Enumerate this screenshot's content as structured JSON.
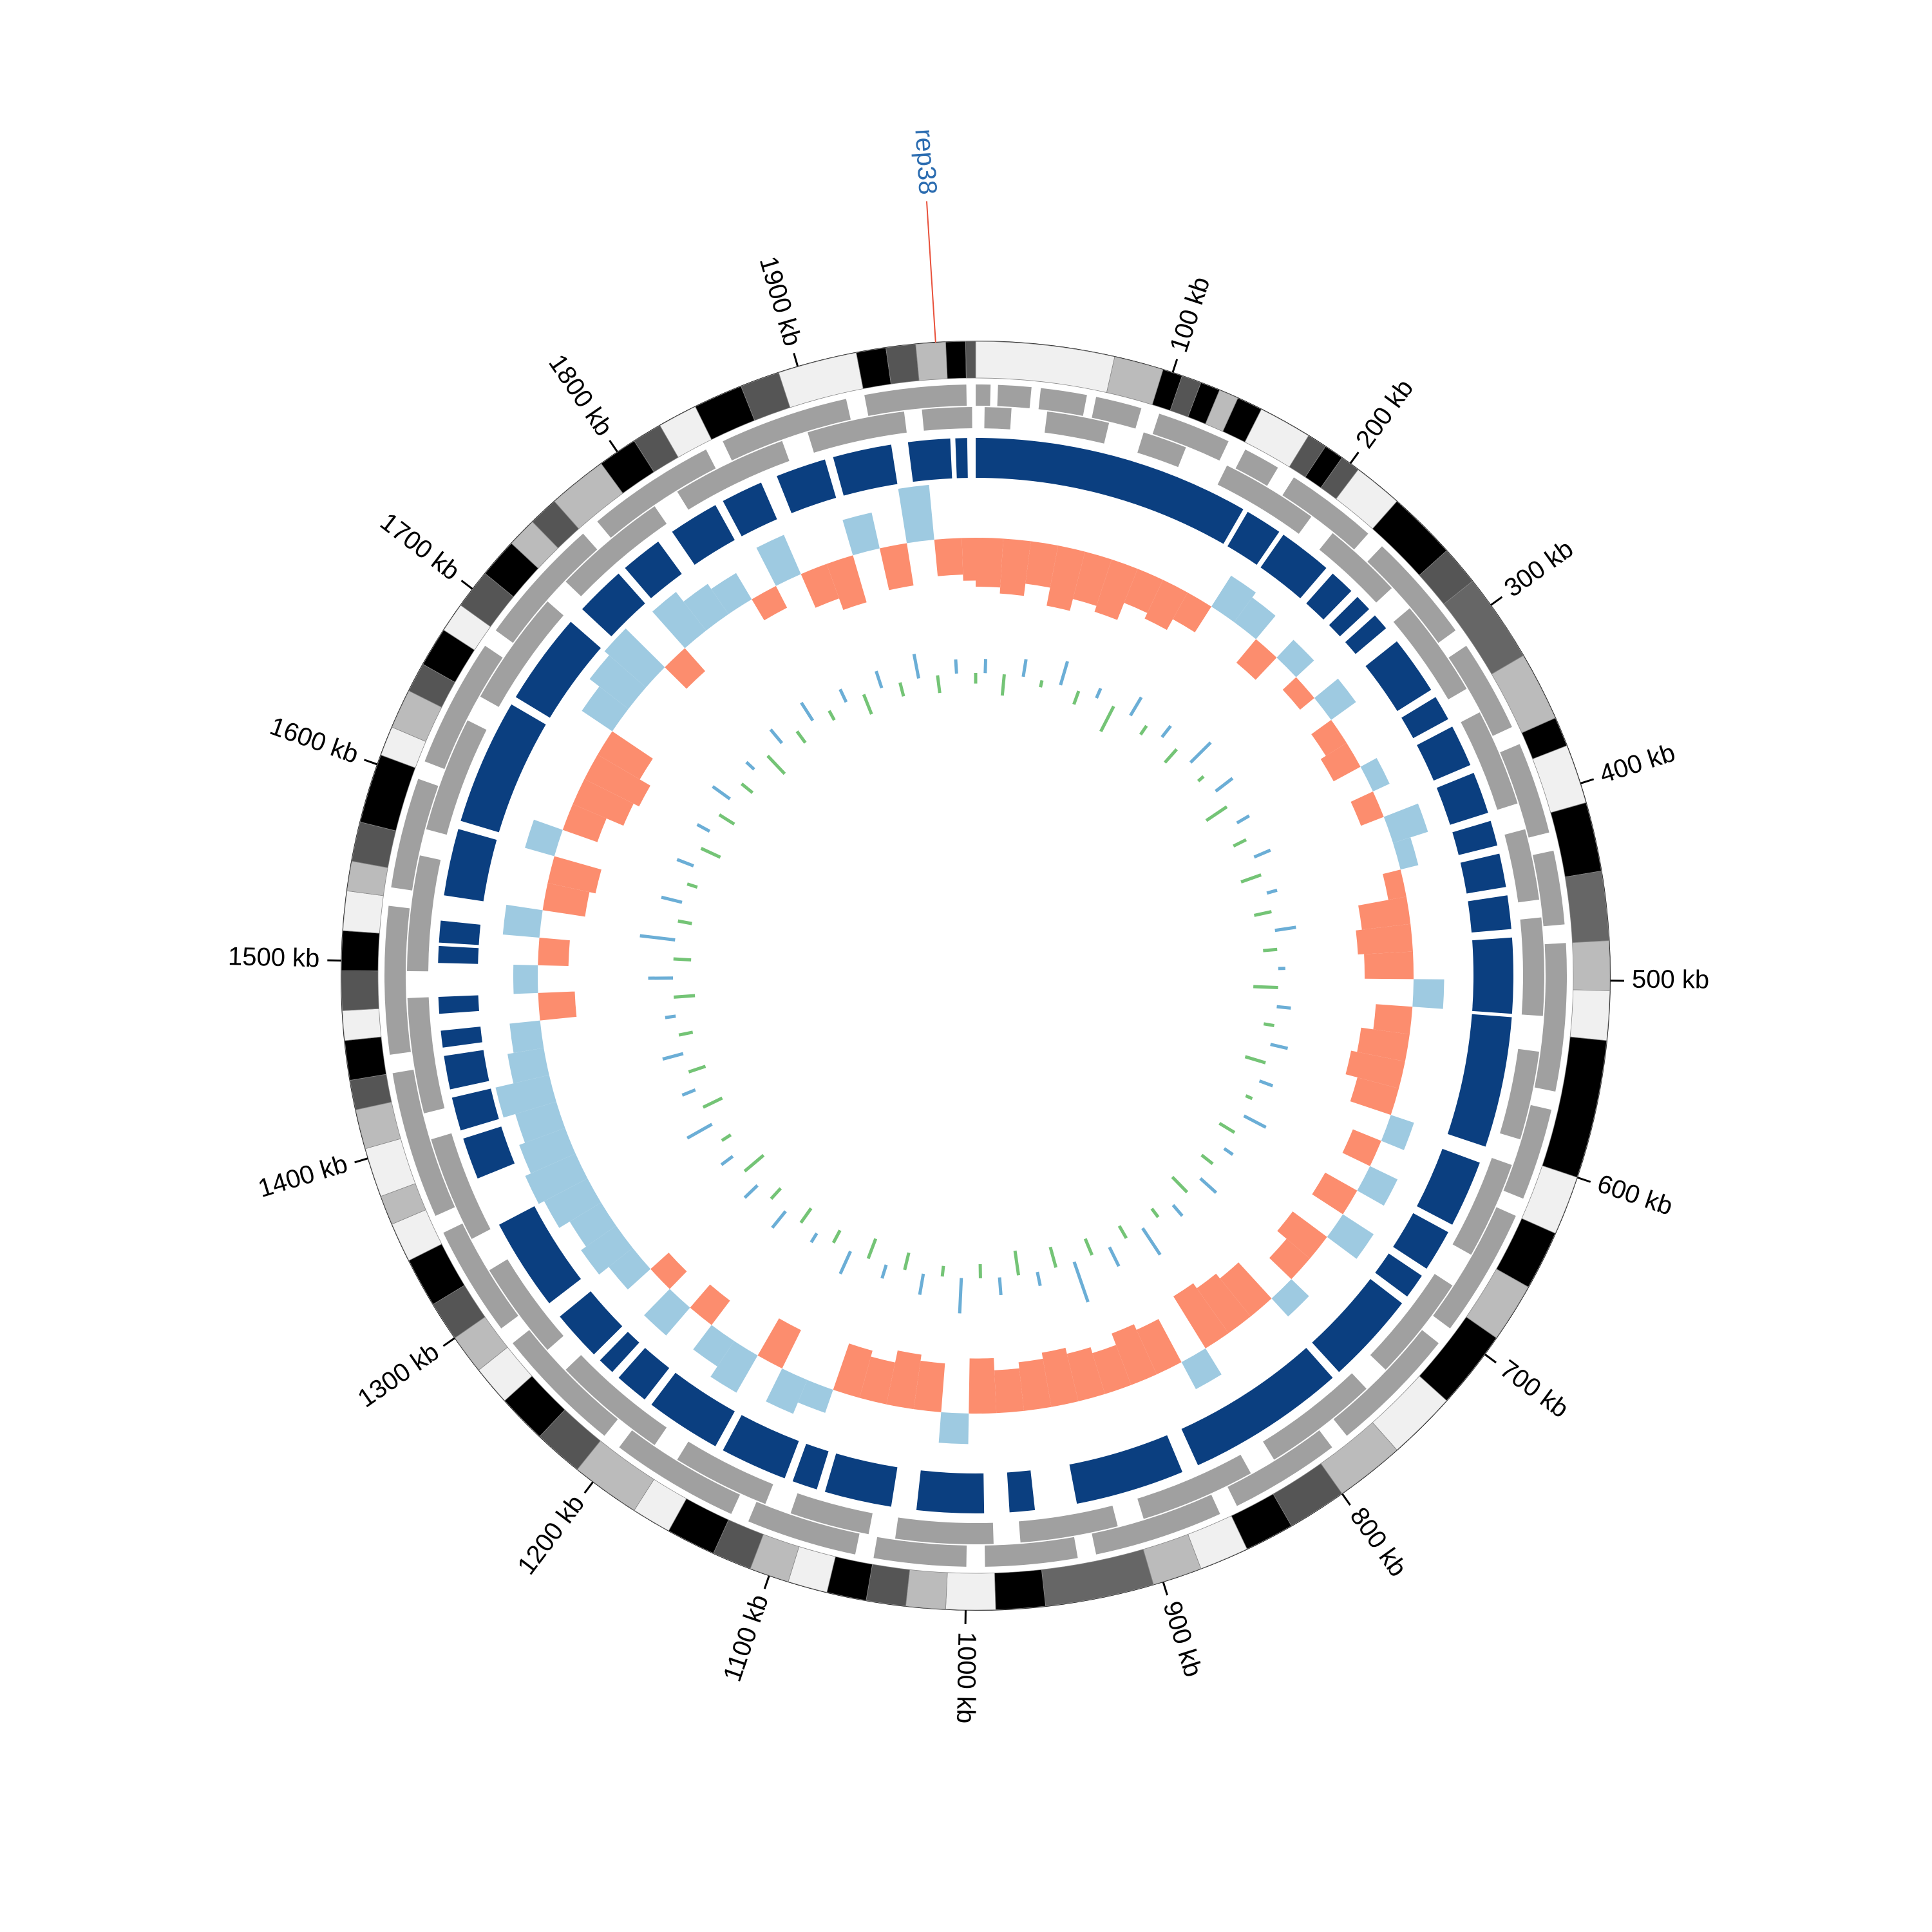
{
  "chart_data": {
    "type": "circos",
    "genome_length": 1990,
    "ticks": [
      {
        "value": 100,
        "label": "100 kb"
      },
      {
        "value": 200,
        "label": "200 kb"
      },
      {
        "value": 300,
        "label": "300 kb"
      },
      {
        "value": 400,
        "label": "400 kb"
      },
      {
        "value": 500,
        "label": "500 kb"
      },
      {
        "value": 600,
        "label": "600 kb"
      },
      {
        "value": 700,
        "label": "700 kb"
      },
      {
        "value": 800,
        "label": "800 kb"
      },
      {
        "value": 900,
        "label": "900 kb"
      },
      {
        "value": 1000,
        "label": "1000 kb"
      },
      {
        "value": 1100,
        "label": "1100 kb"
      },
      {
        "value": 1200,
        "label": "1200 kb"
      },
      {
        "value": 1300,
        "label": "1300 kb"
      },
      {
        "value": 1400,
        "label": "1400 kb"
      },
      {
        "value": 1500,
        "label": "1500 kb"
      },
      {
        "value": 1600,
        "label": "1600 kb"
      },
      {
        "value": 1700,
        "label": "1700 kb"
      },
      {
        "value": 1800,
        "label": "1800 kb"
      },
      {
        "value": 1900,
        "label": "1900 kb"
      }
    ],
    "marker": {
      "label": "rep38",
      "position": 1970,
      "line_color": "#e8503a",
      "label_color": "#2b6cb0"
    },
    "band_edges": [
      0,
      70,
      95,
      105,
      115,
      125,
      135,
      148,
      175,
      185,
      195,
      205,
      230,
      265,
      285,
      330,
      365,
      380,
      410,
      445,
      480,
      505,
      530,
      600,
      630,
      660,
      690,
      730,
      765,
      800,
      830,
      855,
      880,
      905,
      960,
      985,
      1010,
      1030,
      1050,
      1070,
      1090,
      1110,
      1130,
      1155,
      1175,
      1210,
      1235,
      1260,
      1280,
      1300,
      1320,
      1345,
      1365,
      1380,
      1405,
      1425,
      1440,
      1460,
      1475,
      1495,
      1515,
      1535,
      1550,
      1570,
      1605,
      1620,
      1640,
      1655,
      1675,
      1690,
      1710,
      1730,
      1745,
      1760,
      1790,
      1810,
      1825,
      1845,
      1870,
      1890,
      1930,
      1945,
      1960,
      1975,
      1985,
      1990
    ],
    "band_colors": [
      "#f0f0f0",
      "#bbbbbb",
      "#000000",
      "#555555",
      "#000000",
      "#bbbbbb",
      "#000000",
      "#f0f0f0",
      "#555555",
      "#000000",
      "#555555",
      "#f0f0f0",
      "#000000",
      "#555555",
      "#666666",
      "#bbbbbb",
      "#000000",
      "#f0f0f0",
      "#000000",
      "#666666",
      "#bbbbbb",
      "#f0f0f0",
      "#000000",
      "#f0f0f0",
      "#000000",
      "#bbbbbb",
      "#000000",
      "#f0f0f0",
      "#bbbbbb",
      "#555555",
      "#000000",
      "#f0f0f0",
      "#bbbbbb",
      "#666666",
      "#000000",
      "#f0f0f0",
      "#bbbbbb",
      "#555555",
      "#000000",
      "#f0f0f0",
      "#bbbbbb",
      "#555555",
      "#000000",
      "#f0f0f0",
      "#bbbbbb",
      "#555555",
      "#000000",
      "#f0f0f0",
      "#bbbbbb",
      "#555555",
      "#000000",
      "#f0f0f0",
      "#bbbbbb",
      "#f0f0f0",
      "#bbbbbb",
      "#555555",
      "#000000",
      "#f0f0f0",
      "#555555",
      "#000000",
      "#f0f0f0",
      "#bbbbbb",
      "#555555",
      "#000000",
      "#f0f0f0",
      "#bbbbbb",
      "#555555",
      "#000000",
      "#f0f0f0",
      "#555555",
      "#000000",
      "#bbbbbb",
      "#555555",
      "#bbbbbb",
      "#000000",
      "#555555",
      "#f0f0f0",
      "#000000",
      "#555555",
      "#f0f0f0",
      "#000000",
      "#555555",
      "#bbbbbb",
      "#000000",
      "#555555"
    ],
    "gene_color": "#a0a0a0",
    "genes_plus": {
      "starts": [
        0,
        12,
        35,
        65,
        100,
        150,
        180,
        240,
        310,
        370,
        430,
        480,
        570,
        630,
        710,
        790,
        860,
        940,
        1000,
        1060,
        1130,
        1210,
        1290,
        1360,
        1450,
        1540,
        1610,
        1690,
        1770,
        1850,
        1930
      ],
      "ends": [
        8,
        30,
        60,
        90,
        140,
        170,
        230,
        300,
        360,
        420,
        470,
        560,
        620,
        700,
        780,
        850,
        930,
        990,
        1050,
        1120,
        1200,
        1280,
        1350,
        1440,
        1530,
        1600,
        1680,
        1760,
        1840,
        1920,
        1985
      ]
    },
    "genes_minus": {
      "starts": [
        5,
        40,
        95,
        145,
        215,
        275,
        345,
        415,
        465,
        540,
        605,
        680,
        755,
        835,
        915,
        985,
        1055,
        1115,
        1185,
        1265,
        1340,
        1415,
        1495,
        1575,
        1655,
        1735,
        1815,
        1895,
        1960
      ],
      "ends": [
        20,
        75,
        120,
        200,
        260,
        330,
        400,
        455,
        520,
        590,
        660,
        740,
        820,
        900,
        970,
        1040,
        1100,
        1170,
        1250,
        1320,
        1400,
        1480,
        1560,
        1640,
        1720,
        1800,
        1880,
        1950,
        1988
      ]
    },
    "block_color": "#0b3f80",
    "blocks": {
      "starts": [
        0,
        168,
        193,
        230,
        250,
        265,
        285,
        325,
        345,
        375,
        405,
        425,
        450,
        475,
        522,
        610,
        655,
        685,
        705,
        765,
        870,
        960,
        990,
        1045,
        1090,
        1110,
        1155,
        1205,
        1230,
        1245,
        1285,
        1370,
        1400,
        1425,
        1450,
        1470,
        1500,
        1512,
        1540,
        1585,
        1665,
        1730,
        1765,
        1800,
        1835,
        1870,
        1905,
        1950,
        1978
      ],
      "ends": [
        165,
        190,
        225,
        245,
        260,
        275,
        320,
        340,
        370,
        400,
        420,
        445,
        470,
        520,
        600,
        650,
        680,
        700,
        760,
        860,
        935,
        975,
        1030,
        1085,
        1105,
        1150,
        1200,
        1225,
        1240,
        1275,
        1340,
        1395,
        1420,
        1445,
        1460,
        1480,
        1510,
        1525,
        1580,
        1660,
        1720,
        1760,
        1790,
        1830,
        1860,
        1900,
        1940,
        1975,
        1985
      ]
    },
    "x": [
      0,
      20,
      40,
      60,
      80,
      100,
      120,
      140,
      160,
      180,
      200,
      220,
      240,
      260,
      280,
      300,
      320,
      340,
      360,
      380,
      400,
      420,
      440,
      460,
      480,
      500,
      520,
      540,
      560,
      580,
      600,
      620,
      640,
      660,
      680,
      700,
      720,
      740,
      760,
      780,
      800,
      820,
      840,
      860,
      880,
      900,
      920,
      940,
      960,
      980,
      1000,
      1020,
      1040,
      1060,
      1080,
      1100,
      1120,
      1140,
      1160,
      1180,
      1200,
      1220,
      1240,
      1260,
      1280,
      1300,
      1320,
      1340,
      1360,
      1380,
      1400,
      1420,
      1440,
      1460,
      1480,
      1500,
      1520,
      1540,
      1560,
      1580,
      1600,
      1620,
      1640,
      1660,
      1680,
      1700,
      1720,
      1740,
      1760,
      1780,
      1800,
      1820,
      1840,
      1860,
      1880,
      1900,
      1920,
      1940,
      1960,
      1980
    ],
    "gc_content": {
      "positive_color": "#9ecae1",
      "negative_color": "#fc8d6e",
      "ylim": [
        -1,
        1
      ],
      "values": [
        -0.8,
        -0.9,
        -0.7,
        -1,
        -0.8,
        -0.9,
        -0.6,
        -0.7,
        -0.5,
        0.6,
        0.5,
        -0.5,
        0.4,
        -0.3,
        0.5,
        -0.4,
        -0.5,
        0.3,
        -0.4,
        0.6,
        0.3,
        -0.3,
        -0.8,
        -0.9,
        -0.8,
        0.5,
        -0.6,
        -0.8,
        -0.9,
        -0.7,
        0.4,
        -0.5,
        0.5,
        -0.6,
        0.6,
        -0.7,
        -0.5,
        0.4,
        -0.8,
        -0.9,
        -1,
        0.5,
        -0.8,
        -0.9,
        -0.7,
        -0.8,
        -0.9,
        -0.8,
        -0.7,
        -0.9,
        0.5,
        -0.8,
        -0.9,
        -0.7,
        -0.8,
        0.4,
        0.6,
        -0.7,
        0.7,
        0.5,
        -0.5,
        0.6,
        -0.4,
        0.5,
        0.7,
        0.6,
        0.8,
        0.9,
        0.8,
        0.7,
        0.9,
        0.6,
        0.5,
        -0.6,
        0.4,
        -0.5,
        0.6,
        -0.7,
        -0.8,
        0.5,
        -0.6,
        -0.9,
        -1,
        -0.8,
        0.6,
        0.8,
        0.9,
        -0.5,
        0.8,
        0.6,
        0.5,
        -0.4,
        0.7,
        -0.6,
        -0.8,
        0.6,
        -0.7,
        0.9,
        -0.6,
        -0.7
      ]
    },
    "gc_skew": {
      "positive_color": "#6baed6",
      "negative_color": "#74c476",
      "ylim": [
        -1,
        1
      ],
      "values": [
        0.2,
        -0.3,
        0.25,
        -0.1,
        0.35,
        -0.2,
        0.15,
        -0.4,
        0.3,
        -0.15,
        0.2,
        -0.25,
        0.4,
        -0.1,
        0.3,
        -0.35,
        0.2,
        -0.2,
        0.25,
        -0.3,
        0.15,
        -0.25,
        0.3,
        -0.2,
        0.1,
        -0.35,
        0.2,
        -0.15,
        0.25,
        -0.3,
        0.2,
        -0.1,
        0.35,
        -0.25,
        0.15,
        -0.2,
        0.3,
        -0.3,
        0.2,
        -0.15,
        0.45,
        -0.2,
        0.3,
        -0.25,
        0.6,
        -0.3,
        0.2,
        -0.35,
        0.25,
        -0.2,
        0.5,
        -0.15,
        0.3,
        -0.25,
        0.2,
        -0.3,
        0.35,
        -0.2,
        0.15,
        -0.25,
        0.3,
        -0.2,
        0.25,
        -0.35,
        0.2,
        -0.15,
        0.4,
        -0.3,
        0.2,
        -0.25,
        0.3,
        -0.2,
        0.15,
        -0.3,
        0.35,
        -0.25,
        0.5,
        -0.2,
        0.3,
        -0.15,
        0.25,
        -0.3,
        0.2,
        -0.25,
        0.3,
        -0.2,
        0.15,
        -0.35,
        0.25,
        -0.2,
        0.3,
        -0.15,
        0.2,
        -0.3,
        0.25,
        -0.2,
        0.35,
        -0.25,
        0.2,
        -0.15
      ]
    }
  }
}
